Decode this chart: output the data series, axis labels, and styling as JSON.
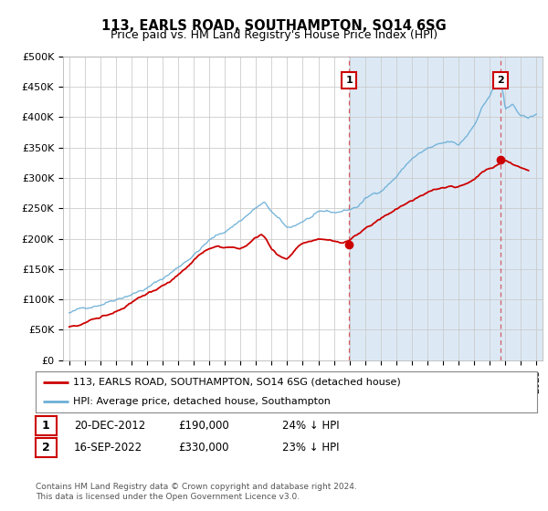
{
  "title": "113, EARLS ROAD, SOUTHAMPTON, SO14 6SG",
  "subtitle": "Price paid vs. HM Land Registry's House Price Index (HPI)",
  "ylabel_ticks": [
    "£0",
    "£50K",
    "£100K",
    "£150K",
    "£200K",
    "£250K",
    "£300K",
    "£350K",
    "£400K",
    "£450K",
    "£500K"
  ],
  "ytick_values": [
    0,
    50000,
    100000,
    150000,
    200000,
    250000,
    300000,
    350000,
    400000,
    450000,
    500000
  ],
  "ylim": [
    0,
    500000
  ],
  "xlim_start": 1994.6,
  "xlim_end": 2025.4,
  "plot_bg_color_left": "#ffffff",
  "plot_bg_color_right": "#dce9f5",
  "hpi_color": "#6baed6",
  "price_color": "#cc0000",
  "marker1_date": 2012.97,
  "marker1_price": 190000,
  "marker1_label": "1",
  "marker2_date": 2022.71,
  "marker2_price": 330000,
  "marker2_label": "2",
  "legend_line1": "113, EARLS ROAD, SOUTHAMPTON, SO14 6SG (detached house)",
  "legend_line2": "HPI: Average price, detached house, Southampton",
  "footer": "Contains HM Land Registry data © Crown copyright and database right 2024.\nThis data is licensed under the Open Government Licence v3.0.",
  "xtick_years": [
    1995,
    1996,
    1997,
    1998,
    1999,
    2000,
    2001,
    2002,
    2003,
    2004,
    2005,
    2006,
    2007,
    2008,
    2009,
    2010,
    2011,
    2012,
    2013,
    2014,
    2015,
    2016,
    2017,
    2018,
    2019,
    2020,
    2021,
    2022,
    2023,
    2024,
    2025
  ],
  "hpi_anchors_x": [
    1995,
    1996,
    1997,
    1998,
    1999,
    2000,
    2001,
    2002,
    2003,
    2004,
    2005,
    2006,
    2007,
    2007.5,
    2008,
    2008.5,
    2009,
    2009.5,
    2010,
    2010.5,
    2011,
    2011.5,
    2012,
    2012.5,
    2013,
    2013.5,
    2014,
    2015,
    2016,
    2017,
    2017.5,
    2018,
    2018.5,
    2019,
    2019.5,
    2020,
    2020.5,
    2021,
    2021.5,
    2022,
    2022.3,
    2022.6,
    2022.9,
    2023,
    2023.5,
    2024,
    2024.5,
    2025
  ],
  "hpi_anchors_y": [
    78000,
    85000,
    95000,
    107000,
    118000,
    128000,
    143000,
    162000,
    185000,
    208000,
    222000,
    242000,
    263000,
    270000,
    255000,
    240000,
    225000,
    230000,
    238000,
    244000,
    248000,
    249000,
    247000,
    250000,
    253000,
    258000,
    270000,
    285000,
    310000,
    340000,
    348000,
    355000,
    358000,
    360000,
    362000,
    355000,
    370000,
    390000,
    420000,
    440000,
    455000,
    470000,
    440000,
    415000,
    420000,
    405000,
    400000,
    405000
  ],
  "price_anchors_x": [
    1995,
    1995.5,
    1996,
    1996.5,
    1997,
    1997.5,
    1998,
    1998.5,
    1999,
    1999.5,
    2000,
    2000.5,
    2001,
    2001.5,
    2002,
    2002.5,
    2003,
    2003.5,
    2004,
    2004.5,
    2005,
    2005.5,
    2006,
    2006.5,
    2007,
    2007.3,
    2007.6,
    2008,
    2008.5,
    2009,
    2009.3,
    2009.6,
    2010,
    2010.5,
    2011,
    2011.5,
    2012,
    2012.5,
    2013,
    2013.5,
    2014,
    2014.5,
    2015,
    2015.5,
    2016,
    2016.5,
    2017,
    2017.5,
    2018,
    2018.5,
    2019,
    2019.5,
    2020,
    2020.5,
    2021,
    2021.5,
    2022,
    2022.5,
    2023,
    2023.5,
    2024,
    2024.5
  ],
  "price_anchors_y": [
    55000,
    58000,
    63000,
    68000,
    72000,
    78000,
    83000,
    88000,
    95000,
    103000,
    110000,
    115000,
    123000,
    128000,
    140000,
    152000,
    163000,
    172000,
    178000,
    183000,
    181000,
    183000,
    182000,
    188000,
    200000,
    207000,
    200000,
    183000,
    172000,
    167000,
    175000,
    185000,
    193000,
    196000,
    198000,
    197000,
    194000,
    192000,
    195000,
    205000,
    215000,
    222000,
    230000,
    238000,
    245000,
    252000,
    258000,
    265000,
    272000,
    278000,
    280000,
    283000,
    283000,
    288000,
    295000,
    305000,
    312000,
    318000,
    325000,
    318000,
    315000,
    312000
  ]
}
